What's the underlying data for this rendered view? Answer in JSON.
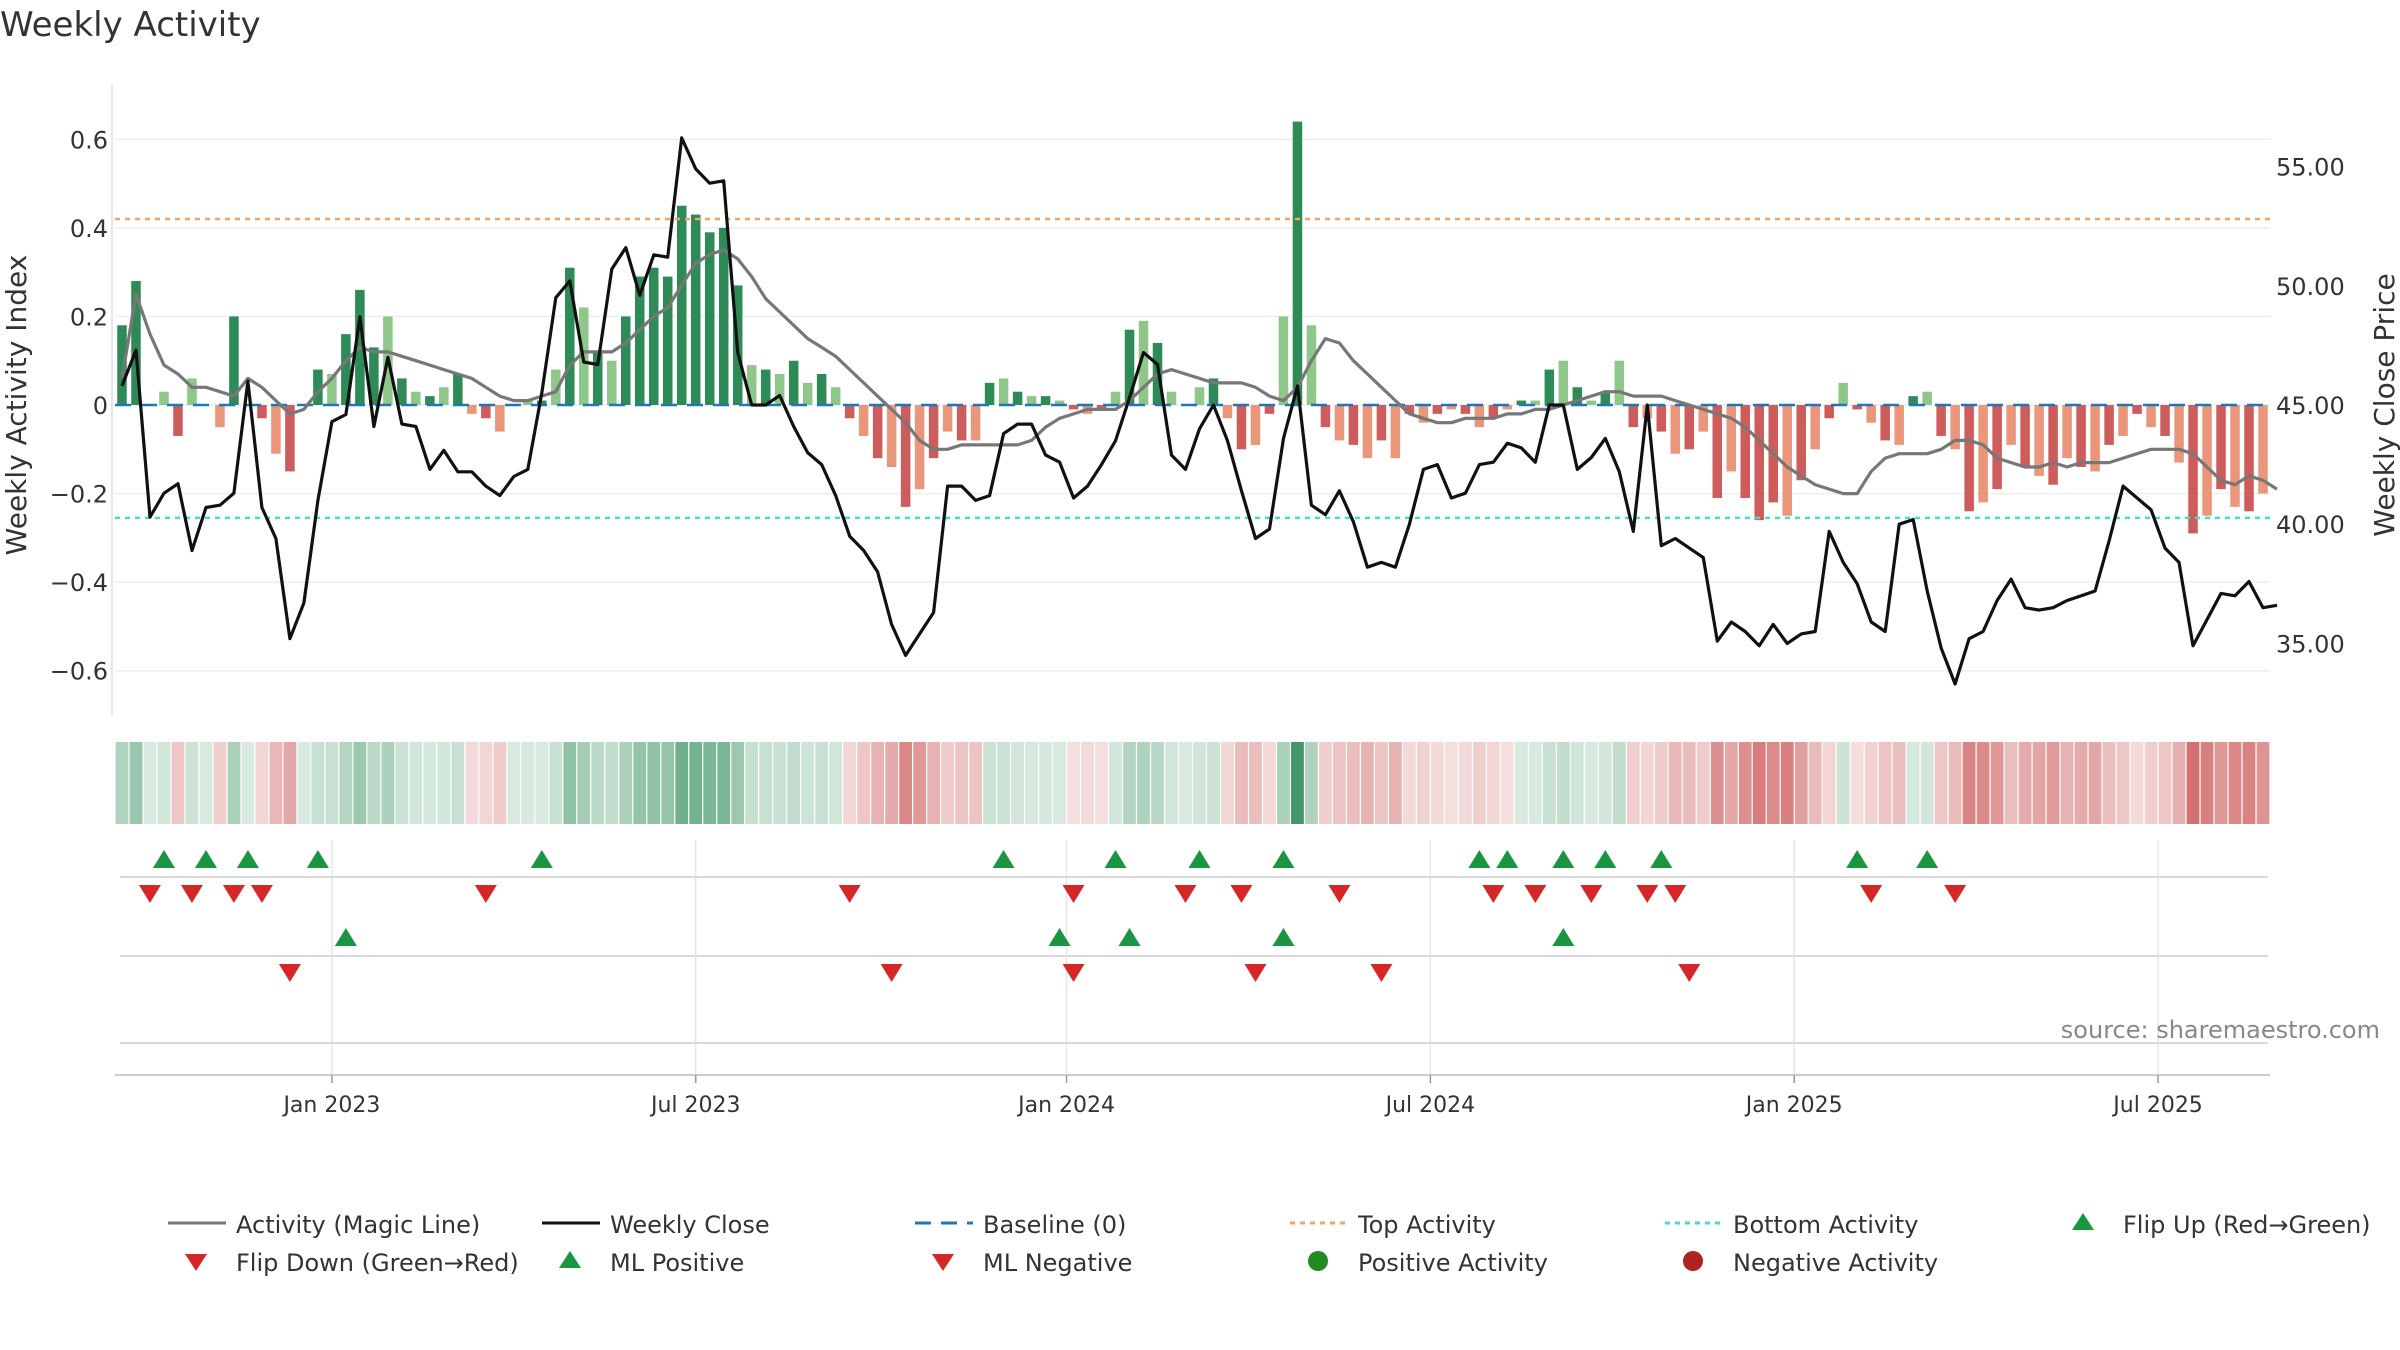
{
  "chart_data": {
    "type": "bar+line",
    "title": "Weekly Activity",
    "ylabel": "Weekly Activity Index",
    "y2label": "Weekly Close Price",
    "ylim": [
      -0.7,
      0.7
    ],
    "y2lim": [
      32.0,
      58.0
    ],
    "yticks": [
      0.6,
      0.4,
      0.2,
      0,
      -0.2,
      -0.4,
      -0.6
    ],
    "ytick_labels": [
      "0.6",
      "0.4",
      "0.2",
      "0",
      "−0.2",
      "−0.4",
      "−0.6"
    ],
    "y2ticks": [
      55.0,
      50.0,
      45.0,
      40.0,
      35.0
    ],
    "y2tick_labels": [
      "55.00",
      "50.00",
      "45.00",
      "40.00",
      "35.00"
    ],
    "xticks": [
      {
        "label": "Jan 2023",
        "week": 15
      },
      {
        "label": "Jul 2023",
        "week": 41
      },
      {
        "label": "Jan 2024",
        "week": 67.5
      },
      {
        "label": "Jul 2024",
        "week": 93.5
      },
      {
        "label": "Jan 2025",
        "week": 119.5
      },
      {
        "label": "Jul 2025",
        "week": 145.5
      }
    ],
    "top_activity": 0.42,
    "bottom_activity": -0.255,
    "baseline": 0,
    "colors": {
      "pos_strong": "#2e8b57",
      "pos_light": "#8fc78a",
      "neg_strong": "#cd5c5c",
      "neg_light": "#e9967a",
      "close": "#111111",
      "magic": "#777777",
      "top": "#f4a460",
      "bottom": "#40e0d0",
      "baseline": "#1f77b4",
      "up": "#1a9641",
      "down": "#d62728"
    },
    "activity": [
      0.18,
      0.28,
      0,
      0.03,
      -0.07,
      0.06,
      0,
      -0.05,
      0.2,
      0,
      -0.03,
      -0.11,
      -0.15,
      0,
      0.08,
      0.07,
      0.16,
      0.26,
      0.13,
      0.2,
      0.06,
      0.03,
      0.02,
      0.04,
      0.07,
      -0.02,
      -0.03,
      -0.06,
      0,
      0.01,
      0.01,
      0.08,
      0.31,
      0.22,
      0.12,
      0.1,
      0.2,
      0.29,
      0.31,
      0.29,
      0.45,
      0.43,
      0.39,
      0.4,
      0.27,
      0.09,
      0.08,
      0.07,
      0.1,
      0.05,
      0.07,
      0.04,
      -0.03,
      -0.07,
      -0.12,
      -0.14,
      -0.23,
      -0.19,
      -0.12,
      -0.06,
      -0.08,
      -0.08,
      0.05,
      0.06,
      0.03,
      0.02,
      0.02,
      0.01,
      -0.01,
      -0.02,
      -0.01,
      0.03,
      0.17,
      0.19,
      0.14,
      0.03,
      0,
      0.04,
      0.06,
      -0.03,
      -0.1,
      -0.09,
      -0.02,
      0.2,
      0.64,
      0.18,
      -0.05,
      -0.08,
      -0.09,
      -0.12,
      -0.08,
      -0.12,
      -0.02,
      -0.04,
      -0.02,
      -0.01,
      -0.02,
      -0.05,
      -0.03,
      -0.01,
      0.01,
      0.01,
      0.08,
      0.1,
      0.04,
      0.01,
      0.03,
      0.1,
      -0.05,
      -0.03,
      -0.06,
      -0.11,
      -0.1,
      -0.06,
      -0.21,
      -0.15,
      -0.21,
      -0.26,
      -0.22,
      -0.25,
      -0.17,
      -0.1,
      -0.03,
      0.05,
      -0.01,
      -0.04,
      -0.08,
      -0.09,
      0.02,
      0.03,
      -0.07,
      -0.1,
      -0.24,
      -0.22,
      -0.19,
      -0.09,
      -0.14,
      -0.16,
      -0.18,
      -0.12,
      -0.14,
      -0.15,
      -0.09,
      -0.07,
      -0.02,
      -0.05,
      -0.07,
      -0.13,
      -0.29,
      -0.25,
      -0.19,
      -0.23,
      -0.24,
      -0.2
    ],
    "weekly_close": [
      45.8,
      47.3,
      40.3,
      41.3,
      41.7,
      38.9,
      40.7,
      40.8,
      41.3,
      46.0,
      40.7,
      39.4,
      35.2,
      36.7,
      41.0,
      44.3,
      44.6,
      48.7,
      44.1,
      47.0,
      44.2,
      44.1,
      42.3,
      43.1,
      42.2,
      42.2,
      41.6,
      41.2,
      42.0,
      42.3,
      45.5,
      49.5,
      50.2,
      46.8,
      46.7,
      50.7,
      51.6,
      49.6,
      51.3,
      51.2,
      56.2,
      54.9,
      54.3,
      54.4,
      47.2,
      45.0,
      45.0,
      45.4,
      44.1,
      43.0,
      42.5,
      41.2,
      39.5,
      38.9,
      38.0,
      35.8,
      34.5,
      35.4,
      36.3,
      41.6,
      41.6,
      41.0,
      41.2,
      43.8,
      44.2,
      44.2,
      42.9,
      42.6,
      41.1,
      41.6,
      42.5,
      43.5,
      45.3,
      47.2,
      46.7,
      42.9,
      42.3,
      44.0,
      45.0,
      43.5,
      41.4,
      39.4,
      39.8,
      43.6,
      45.8,
      40.8,
      40.4,
      41.4,
      40.1,
      38.2,
      38.4,
      38.2,
      40.0,
      42.3,
      42.5,
      41.1,
      41.3,
      42.5,
      42.6,
      43.4,
      43.2,
      42.6,
      45.0,
      45.0,
      42.3,
      42.8,
      43.6,
      42.2,
      39.7,
      45.0,
      39.1,
      39.4,
      39.0,
      38.6,
      35.1,
      35.9,
      35.5,
      34.9,
      35.8,
      35.0,
      35.4,
      35.5,
      39.7,
      38.4,
      37.5,
      35.9,
      35.5,
      40.0,
      40.2,
      37.2,
      34.8,
      33.3,
      35.2,
      35.5,
      36.8,
      37.7,
      36.5,
      36.4,
      36.5,
      36.8,
      37.0,
      37.2,
      39.3,
      41.6,
      41.1,
      40.6,
      39.0,
      38.4,
      34.9,
      36.0,
      37.1,
      37.0,
      37.6,
      36.5,
      36.6
    ],
    "magic_line": [
      0.06,
      0.25,
      0.16,
      0.09,
      0.07,
      0.04,
      0.04,
      0.03,
      0.02,
      0.06,
      0.04,
      0.01,
      -0.02,
      -0.01,
      0.03,
      0.06,
      0.1,
      0.13,
      0.12,
      0.12,
      0.11,
      0.1,
      0.09,
      0.08,
      0.07,
      0.06,
      0.04,
      0.02,
      0.01,
      0.01,
      0.02,
      0.03,
      0.09,
      0.12,
      0.12,
      0.12,
      0.14,
      0.17,
      0.2,
      0.22,
      0.27,
      0.32,
      0.34,
      0.35,
      0.33,
      0.29,
      0.24,
      0.21,
      0.18,
      0.15,
      0.13,
      0.11,
      0.08,
      0.05,
      0.02,
      -0.01,
      -0.04,
      -0.08,
      -0.1,
      -0.1,
      -0.09,
      -0.09,
      -0.09,
      -0.09,
      -0.09,
      -0.08,
      -0.05,
      -0.03,
      -0.02,
      -0.01,
      -0.01,
      -0.01,
      0.01,
      0.04,
      0.07,
      0.08,
      0.07,
      0.06,
      0.05,
      0.05,
      0.05,
      0.04,
      0.02,
      0.01,
      0.04,
      0.1,
      0.15,
      0.14,
      0.1,
      0.07,
      0.04,
      0.01,
      -0.02,
      -0.03,
      -0.04,
      -0.04,
      -0.03,
      -0.03,
      -0.03,
      -0.02,
      -0.02,
      -0.01,
      -0.01,
      0,
      0.01,
      0.02,
      0.03,
      0.03,
      0.02,
      0.02,
      0.02,
      0.01,
      0,
      -0.01,
      -0.02,
      -0.03,
      -0.05,
      -0.08,
      -0.11,
      -0.14,
      -0.16,
      -0.18,
      -0.19,
      -0.2,
      -0.2,
      -0.15,
      -0.12,
      -0.11,
      -0.11,
      -0.11,
      -0.1,
      -0.08,
      -0.08,
      -0.09,
      -0.12,
      -0.13,
      -0.14,
      -0.14,
      -0.13,
      -0.14,
      -0.13,
      -0.13,
      -0.13,
      -0.12,
      -0.11,
      -0.1,
      -0.1,
      -0.1,
      -0.11,
      -0.14,
      -0.17,
      -0.18,
      -0.16,
      -0.17,
      -0.19
    ],
    "heat_strip": [
      0.18,
      0.28,
      0,
      0.03,
      -0.07,
      0.06,
      0,
      -0.05,
      0.2,
      0,
      -0.03,
      -0.11,
      -0.15,
      0,
      0.08,
      0.07,
      0.16,
      0.26,
      0.13,
      0.2,
      0.06,
      0.03,
      0.02,
      0.04,
      0.07,
      -0.02,
      -0.03,
      -0.06,
      0,
      0.01,
      0.01,
      0.08,
      0.31,
      0.22,
      0.12,
      0.1,
      0.2,
      0.29,
      0.31,
      0.29,
      0.45,
      0.43,
      0.39,
      0.4,
      0.27,
      0.09,
      0.08,
      0.07,
      0.1,
      0.05,
      0.07,
      0.04,
      -0.03,
      -0.07,
      -0.12,
      -0.14,
      -0.23,
      -0.19,
      -0.12,
      -0.06,
      -0.08,
      -0.08,
      0.05,
      0.06,
      0.03,
      0.02,
      0.02,
      0.01,
      -0.01,
      -0.02,
      -0.01,
      0.03,
      0.17,
      0.19,
      0.14,
      0.03,
      0,
      0.04,
      0.06,
      -0.03,
      -0.1,
      -0.09,
      -0.02,
      0.2,
      0.64,
      0.18,
      -0.05,
      -0.08,
      -0.09,
      -0.12,
      -0.08,
      -0.12,
      -0.02,
      -0.04,
      -0.02,
      -0.01,
      -0.02,
      -0.05,
      -0.03,
      -0.01,
      0.01,
      0.01,
      0.08,
      0.1,
      0.04,
      0.01,
      0.03,
      0.1,
      -0.05,
      -0.03,
      -0.06,
      -0.11,
      -0.1,
      -0.06,
      -0.21,
      -0.15,
      -0.21,
      -0.26,
      -0.22,
      -0.25,
      -0.17,
      -0.1,
      -0.03,
      0.05,
      -0.01,
      -0.04,
      -0.08,
      -0.09,
      0.02,
      0.03,
      -0.07,
      -0.1,
      -0.24,
      -0.22,
      -0.19,
      -0.09,
      -0.14,
      -0.16,
      -0.18,
      -0.12,
      -0.14,
      -0.15,
      -0.09,
      -0.07,
      -0.02,
      -0.05,
      -0.07,
      -0.13,
      -0.29,
      -0.25,
      -0.19,
      -0.23,
      -0.24,
      -0.2
    ],
    "flip_up_weeks": [
      3,
      6,
      9,
      14,
      30,
      63,
      71,
      77,
      83,
      97,
      99,
      103,
      106,
      110,
      124,
      129
    ],
    "flip_down_weeks": [
      2,
      5,
      8,
      10,
      26,
      52,
      68,
      76,
      80,
      87,
      98,
      101,
      105,
      109,
      111,
      125,
      131
    ],
    "ml_positive_weeks": [
      16,
      67,
      72,
      83,
      103
    ],
    "ml_negative_weeks": [
      12,
      55,
      68,
      81,
      90,
      112
    ],
    "source": "source: sharemaestro.com",
    "legend": [
      {
        "key": "magic",
        "label": "Activity (Magic Line)"
      },
      {
        "key": "close",
        "label": "Weekly Close"
      },
      {
        "key": "baseline",
        "label": "Baseline (0)"
      },
      {
        "key": "top",
        "label": "Top Activity"
      },
      {
        "key": "bottom",
        "label": "Bottom Activity"
      },
      {
        "key": "flipup",
        "label": "Flip Up (Red→Green)"
      },
      {
        "key": "flipdown",
        "label": "Flip Down (Green→Red)"
      },
      {
        "key": "mlpos",
        "label": "ML Positive"
      },
      {
        "key": "mlneg",
        "label": "ML Negative"
      },
      {
        "key": "posact",
        "label": "Positive Activity"
      },
      {
        "key": "negact",
        "label": "Negative Activity"
      }
    ]
  }
}
